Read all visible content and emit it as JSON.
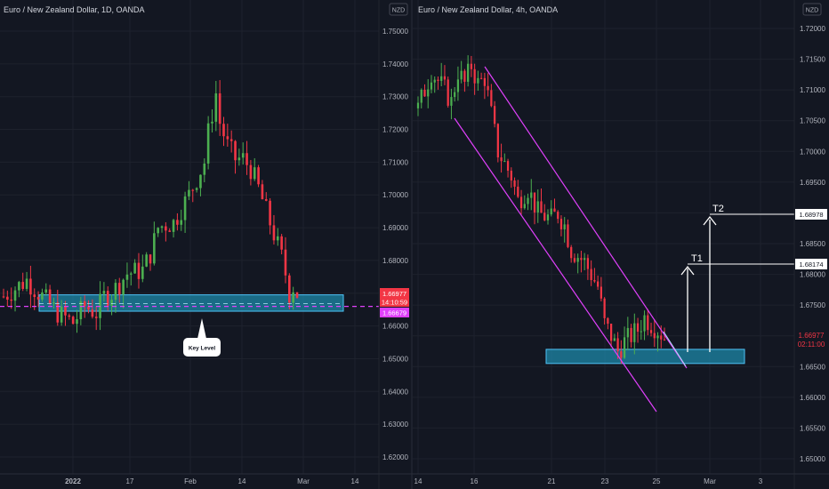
{
  "colors": {
    "background": "#131722",
    "up": "#4caf50",
    "down": "#f23645",
    "zone_fill": "#1e88a8",
    "zone_stroke": "#4fc3f7",
    "channel": "#e040fb",
    "annotation": "#ffffff",
    "price_badge": "#f23645",
    "key_level_badge": "#e040fb"
  },
  "chart_data": [
    {
      "type": "candlestick",
      "title": "Euro / New Zealand Dollar, 1D, OANDA",
      "currency_badge": "NZD",
      "ylim": [
        1.615,
        1.755
      ],
      "y_ticks": [
        "1.75000",
        "1.74000",
        "1.73000",
        "1.72000",
        "1.71000",
        "1.70000",
        "1.69000",
        "1.68000",
        "1.67000",
        "1.66000",
        "1.65000",
        "1.64000",
        "1.63000",
        "1.62000"
      ],
      "x_ticks": [
        "2022",
        "17",
        "Feb",
        "14",
        "Mar",
        "14"
      ],
      "current_price": "1.66977",
      "countdown": "14:10:59",
      "key_level_price": "1.66679",
      "annotation_label": "Key Level",
      "zone": [
        1.6645,
        1.6695
      ],
      "path_points": [
        [
          0,
          1.669
        ],
        [
          6,
          1.674
        ],
        [
          10,
          1.669
        ],
        [
          14,
          1.664
        ],
        [
          18,
          1.661
        ],
        [
          21,
          1.666
        ],
        [
          24,
          1.664
        ],
        [
          26,
          1.669
        ],
        [
          28,
          1.67
        ],
        [
          32,
          1.676
        ],
        [
          36,
          1.677
        ],
        [
          38,
          1.682
        ],
        [
          40,
          1.69
        ],
        [
          42,
          1.691
        ],
        [
          44,
          1.6915
        ],
        [
          48,
          1.7
        ],
        [
          50,
          1.705
        ],
        [
          52,
          1.71
        ],
        [
          53,
          1.719
        ],
        [
          55,
          1.731
        ],
        [
          56,
          1.722
        ],
        [
          58,
          1.715
        ],
        [
          60,
          1.711
        ],
        [
          62,
          1.711
        ],
        [
          64,
          1.708
        ],
        [
          66,
          1.702
        ],
        [
          68,
          1.695
        ],
        [
          70,
          1.688
        ],
        [
          72,
          1.681
        ],
        [
          73,
          1.676
        ],
        [
          74,
          1.67
        ],
        [
          75,
          1.672
        ],
        [
          76,
          1.6698
        ]
      ]
    },
    {
      "type": "candlestick",
      "title": "Euro / New Zealand Dollar, 4h, OANDA",
      "currency_badge": "NZD",
      "ylim": [
        1.646,
        1.722
      ],
      "y_ticks": [
        "1.72000",
        "1.71500",
        "1.71000",
        "1.70500",
        "1.70000",
        "1.69500",
        "1.69000",
        "1.68500",
        "1.68000",
        "1.67500",
        "1.67000",
        "1.66500",
        "1.66000",
        "1.65500",
        "1.65000"
      ],
      "x_ticks": [
        "14",
        "16",
        "21",
        "23",
        "25",
        "Mar",
        "3"
      ],
      "current_price": "1.66977",
      "countdown": "02:11:00",
      "target_labels": [
        "T1",
        "T2"
      ],
      "target_prices": [
        "1.68174",
        "1.68978"
      ],
      "zone": [
        1.6655,
        1.6678
      ],
      "path_points": [
        [
          0,
          1.707
        ],
        [
          4,
          1.713
        ],
        [
          8,
          1.71
        ],
        [
          10,
          1.708
        ],
        [
          12,
          1.713
        ],
        [
          14,
          1.711
        ],
        [
          16,
          1.714
        ],
        [
          18,
          1.711
        ],
        [
          20,
          1.712
        ],
        [
          24,
          1.7
        ],
        [
          28,
          1.696
        ],
        [
          30,
          1.692
        ],
        [
          33,
          1.694
        ],
        [
          36,
          1.69
        ],
        [
          40,
          1.689
        ],
        [
          42,
          1.69
        ],
        [
          44,
          1.688
        ],
        [
          46,
          1.684
        ],
        [
          50,
          1.682
        ],
        [
          54,
          1.678
        ],
        [
          56,
          1.672
        ],
        [
          58,
          1.67
        ],
        [
          60,
          1.6675
        ],
        [
          62,
          1.669
        ],
        [
          64,
          1.67
        ],
        [
          66,
          1.671
        ],
        [
          68,
          1.673
        ],
        [
          70,
          1.672
        ],
        [
          72,
          1.671
        ],
        [
          74,
          1.6698
        ]
      ]
    }
  ]
}
